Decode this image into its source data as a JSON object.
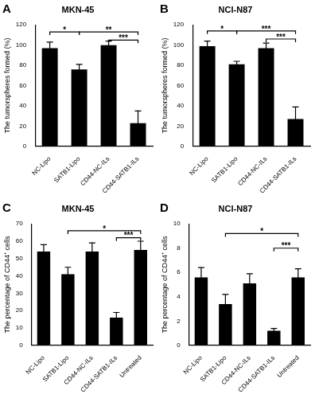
{
  "chart_data": [
    {
      "type": "bar",
      "panel": "A",
      "title": "MKN-45",
      "y_label": "The tumorspheres formed (%)",
      "categories": [
        "NC-Lipo",
        "SATB1-Lipo",
        "CD44-NC-ILs",
        "CD44-SATB1-ILs"
      ],
      "values": [
        97,
        76,
        100,
        23
      ],
      "errors": [
        6,
        5,
        4,
        12
      ],
      "color": "#000000",
      "ylim": [
        0,
        120
      ],
      "yticks": [
        0,
        20,
        40,
        60,
        80,
        100,
        120
      ],
      "grid": false,
      "significance": [
        {
          "from": "NC-Lipo",
          "to": "SATB1-Lipo",
          "y": 113,
          "label": "*"
        },
        {
          "from": "SATB1-Lipo",
          "to": "CD44-SATB1-ILs",
          "y": 113,
          "label": "**"
        },
        {
          "from": "CD44-NC-ILs",
          "to": "CD44-SATB1-ILs",
          "y": 105,
          "label": "***"
        }
      ]
    },
    {
      "type": "bar",
      "panel": "B",
      "title": "NCI-N87",
      "y_label": "The tumorspheres formed (%)",
      "categories": [
        "NC-Lipo",
        "SATB1-Lipo",
        "CD44-NC-ILs",
        "CD44-SATB1-ILs"
      ],
      "values": [
        99,
        81,
        97,
        27
      ],
      "errors": [
        5,
        3,
        5,
        12
      ],
      "color": "#000000",
      "ylim": [
        0,
        120
      ],
      "yticks": [
        0,
        20,
        40,
        60,
        80,
        100,
        120
      ],
      "grid": false,
      "significance": [
        {
          "from": "NC-Lipo",
          "to": "SATB1-Lipo",
          "y": 114,
          "label": "*"
        },
        {
          "from": "SATB1-Lipo",
          "to": "CD44-SATB1-ILs",
          "y": 114,
          "label": "***"
        },
        {
          "from": "CD44-NC-ILs",
          "to": "CD44-SATB1-ILs",
          "y": 106,
          "label": "***"
        }
      ]
    },
    {
      "type": "bar",
      "panel": "C",
      "title": "MKN-45",
      "y_label": "The percentage of CD44⁺ cells",
      "categories": [
        "NC-Lipo",
        "SATB1-Lipo",
        "CD44-NC-ILs",
        "CD44-SATB1-ILs",
        "Untreated"
      ],
      "values": [
        54,
        41,
        54,
        16,
        55
      ],
      "errors": [
        4,
        4,
        5,
        3,
        5
      ],
      "color": "#000000",
      "ylim": [
        0,
        70
      ],
      "yticks": [
        0,
        10,
        20,
        30,
        40,
        50,
        60,
        70
      ],
      "grid": false,
      "significance": [
        {
          "from": "SATB1-Lipo",
          "to": "Untreated",
          "y": 66,
          "label": "*"
        },
        {
          "from": "CD44-SATB1-ILs",
          "to": "Untreated",
          "y": 62,
          "label": "***"
        }
      ]
    },
    {
      "type": "bar",
      "panel": "D",
      "title": "NCI-N87",
      "y_label": "The percentage of CD44⁺ cells",
      "categories": [
        "NC-Lipo",
        "SATB1-Lipo",
        "CD44-NC-ILs",
        "CD44-SATB1-ILs",
        "Untreated"
      ],
      "values": [
        5.6,
        3.4,
        5.1,
        1.2,
        5.6
      ],
      "errors": [
        0.8,
        0.8,
        0.8,
        0.2,
        0.7
      ],
      "color": "#000000",
      "ylim": [
        0,
        10
      ],
      "yticks": [
        0,
        2,
        4,
        6,
        8,
        10
      ],
      "grid": false,
      "significance": [
        {
          "from": "SATB1-Lipo",
          "to": "Untreated",
          "y": 9.2,
          "label": "*"
        },
        {
          "from": "CD44-SATB1-ILs",
          "to": "Untreated",
          "y": 8,
          "label": "***"
        }
      ]
    }
  ]
}
